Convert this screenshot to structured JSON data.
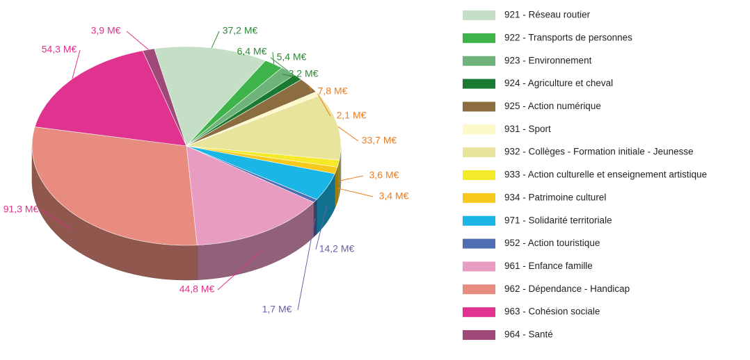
{
  "chart_data": {
    "type": "pie",
    "categories": [
      "921 - Réseau routier",
      "922 - Transports de personnes",
      "923 - Environnement",
      "924 - Agriculture et cheval",
      "925 - Action numérique",
      "931 - Sport",
      "932 - Collèges - Formation initiale - Jeunesse",
      "933 - Action culturelle et enseignement artistique",
      "934 - Patrimoine culturel",
      "971 - Solidarité territoriale",
      "952 - Action touristique",
      "961 - Enfance famille",
      "962 - Dépendance - Handicap",
      "963 - Cohésion sociale",
      "964 - Santé"
    ],
    "values": [
      37.2,
      6.4,
      5.4,
      3.2,
      7.8,
      2.1,
      33.7,
      3.6,
      3.4,
      14.2,
      1.7,
      44.8,
      91.3,
      54.3,
      3.9
    ],
    "value_labels": [
      "37,2 M€",
      "6,4 M€",
      "5,4 M€",
      "3,2 M€",
      "7,8 M€",
      "2,1 M€",
      "33,7 M€",
      "3,6 M€",
      "3,4 M€",
      "14,2 M€",
      "1,7 M€",
      "44,8 M€",
      "91,3 M€",
      "54,3 M€",
      "3,9 M€"
    ],
    "colors": [
      "#c5dfc7",
      "#3db34a",
      "#6db37a",
      "#1a7a32",
      "#8c6d3f",
      "#fdf8c8",
      "#e8e49c",
      "#f5ea2a",
      "#f7c91c",
      "#1ab6e6",
      "#4e6db3",
      "#e89cc2",
      "#e88c80",
      "#e0338f",
      "#a04877"
    ],
    "label_colors": [
      "#2c8a35",
      "#2c8a35",
      "#2c8a35",
      "#2c8a35",
      "#f07d1e",
      "#f07d1e",
      "#f07d1e",
      "#f07d1e",
      "#f07d1e",
      "#6a5fa8",
      "#6a5fa8",
      "#e0308a",
      "#e0308a",
      "#e0308a",
      "#e0308a"
    ],
    "legend": "right"
  }
}
